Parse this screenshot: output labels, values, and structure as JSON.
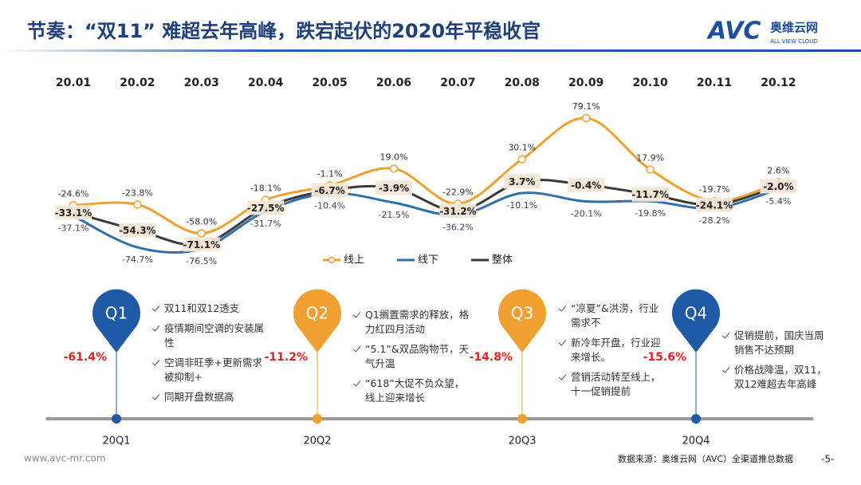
{
  "header": {
    "title": "节奏：“双11” 难超去年高峰，跌宕起伏的2020年平稳收官",
    "logo": "AVC",
    "brand": "奥维云网",
    "brand_en": "ALL VIEW CLOUD"
  },
  "chart_data": {
    "type": "line",
    "categories": [
      "20.01",
      "20.02",
      "20.03",
      "20.04",
      "20.05",
      "20.06",
      "20.07",
      "20.08",
      "20.09",
      "20.10",
      "20.11",
      "20.12"
    ],
    "series": [
      {
        "name": "线上",
        "color": "#f0a030",
        "values": [
          -24.6,
          -23.8,
          -58.0,
          -18.1,
          -1.1,
          19.0,
          -22.9,
          30.1,
          79.1,
          17.9,
          -19.7,
          2.6
        ],
        "value_labels": [
          "-24.6%",
          "-23.8%",
          "-58.0%",
          "-18.1%",
          "-1.1%",
          "19.0%",
          "-22.9%",
          "30.1%",
          "79.1%",
          "17.9%",
          "-19.7%",
          "2.6%"
        ]
      },
      {
        "name": "线下",
        "color": "#2e6fb0",
        "values": [
          -37.1,
          -74.7,
          -76.5,
          -31.7,
          -10.4,
          -21.5,
          -36.2,
          -10.1,
          -20.1,
          -19.8,
          -28.2,
          -5.4
        ],
        "value_labels": [
          "-37.1%",
          "-74.7%",
          "-76.5%",
          "-31.7%",
          "-10.4%",
          "-21.5%",
          "-36.2%",
          "-10.1%",
          "-20.1%",
          "-19.8%",
          "-28.2%",
          "-5.4%"
        ]
      },
      {
        "name": "整体",
        "color": "#3a3a3a",
        "values": [
          -33.1,
          -54.3,
          -71.1,
          -27.5,
          -6.7,
          -3.9,
          -31.2,
          3.7,
          -0.4,
          -11.7,
          -24.1,
          -2.0
        ],
        "value_labels": [
          "-33.1%",
          "-54.3%",
          "-71.1%",
          "-27.5%",
          "-6.7%",
          "-3.9%",
          "-31.2%",
          "3.7%",
          "-0.4%",
          "-11.7%",
          "-24.1%",
          "-2.0%"
        ]
      }
    ],
    "legend": "bottom"
  },
  "timeline": {
    "quarters": [
      {
        "label": "Q1",
        "period": "20Q1",
        "change": "-61.4%",
        "color": "#1f5aa6",
        "notes": [
          "双11和双12透支",
          "疫情期间空调的安装属性",
          "空调非旺季+更新需求被抑制+",
          "同期开盘数据高"
        ]
      },
      {
        "label": "Q2",
        "period": "20Q2",
        "change": "-11.2%",
        "color": "#f0a030",
        "notes": [
          "Q1搁置需求的释放，格力红四月活动",
          "“5.1”&双品购物节，天气升温",
          "“618”大促不负众望，线上迎来增长"
        ]
      },
      {
        "label": "Q3",
        "period": "20Q3",
        "change": "-14.8%",
        "color": "#f0a030",
        "notes": [
          "“凉夏”&洪涝，行业需求不",
          "新冷年开盘，行业迎来增长。",
          "营销活动转至线上，十一促销提前"
        ]
      },
      {
        "label": "Q4",
        "period": "20Q4",
        "change": "-15.6%",
        "color": "#1f5aa6",
        "notes": [
          "促销提前，国庆当周销售不达预期",
          "价格战降温，双11，双12难超去年高峰"
        ]
      }
    ]
  },
  "footer": {
    "website": "www.avc-mr.com",
    "source": "数据来源：奥维云网（AVC）全渠道推总数据",
    "page": "-5-"
  }
}
